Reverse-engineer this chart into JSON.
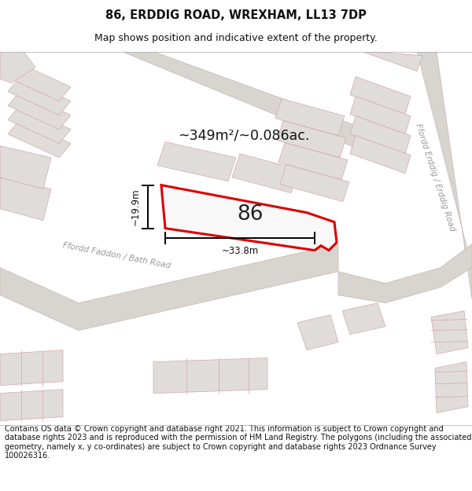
{
  "title": "86, ERDDIG ROAD, WREXHAM, LL13 7DP",
  "subtitle": "Map shows position and indicative extent of the property.",
  "footer": "Contains OS data © Crown copyright and database right 2021. This information is subject to Crown copyright and database rights 2023 and is reproduced with the permission of HM Land Registry. The polygons (including the associated geometry, namely x, y co-ordinates) are subject to Crown copyright and database rights 2023 Ordnance Survey 100026316.",
  "map_bg": "#f2f0ee",
  "road_fill": "#d8d4d0",
  "building_fill": "#e0dcda",
  "road_edge": "#c8b8b4",
  "building_edge": "#d4a8a8",
  "highlight_color": "#dd0000",
  "area_text": "~349m²/~0.086ac.",
  "label_86": "86",
  "dim_width": "~33.8m",
  "dim_height": "~19.9m",
  "road_label_left": "Ffordd Faddon / Bath Road",
  "road_label_right": "Ffordd Erddig / Erddig Road",
  "title_fontsize": 10.5,
  "subtitle_fontsize": 9,
  "footer_fontsize": 7.0
}
